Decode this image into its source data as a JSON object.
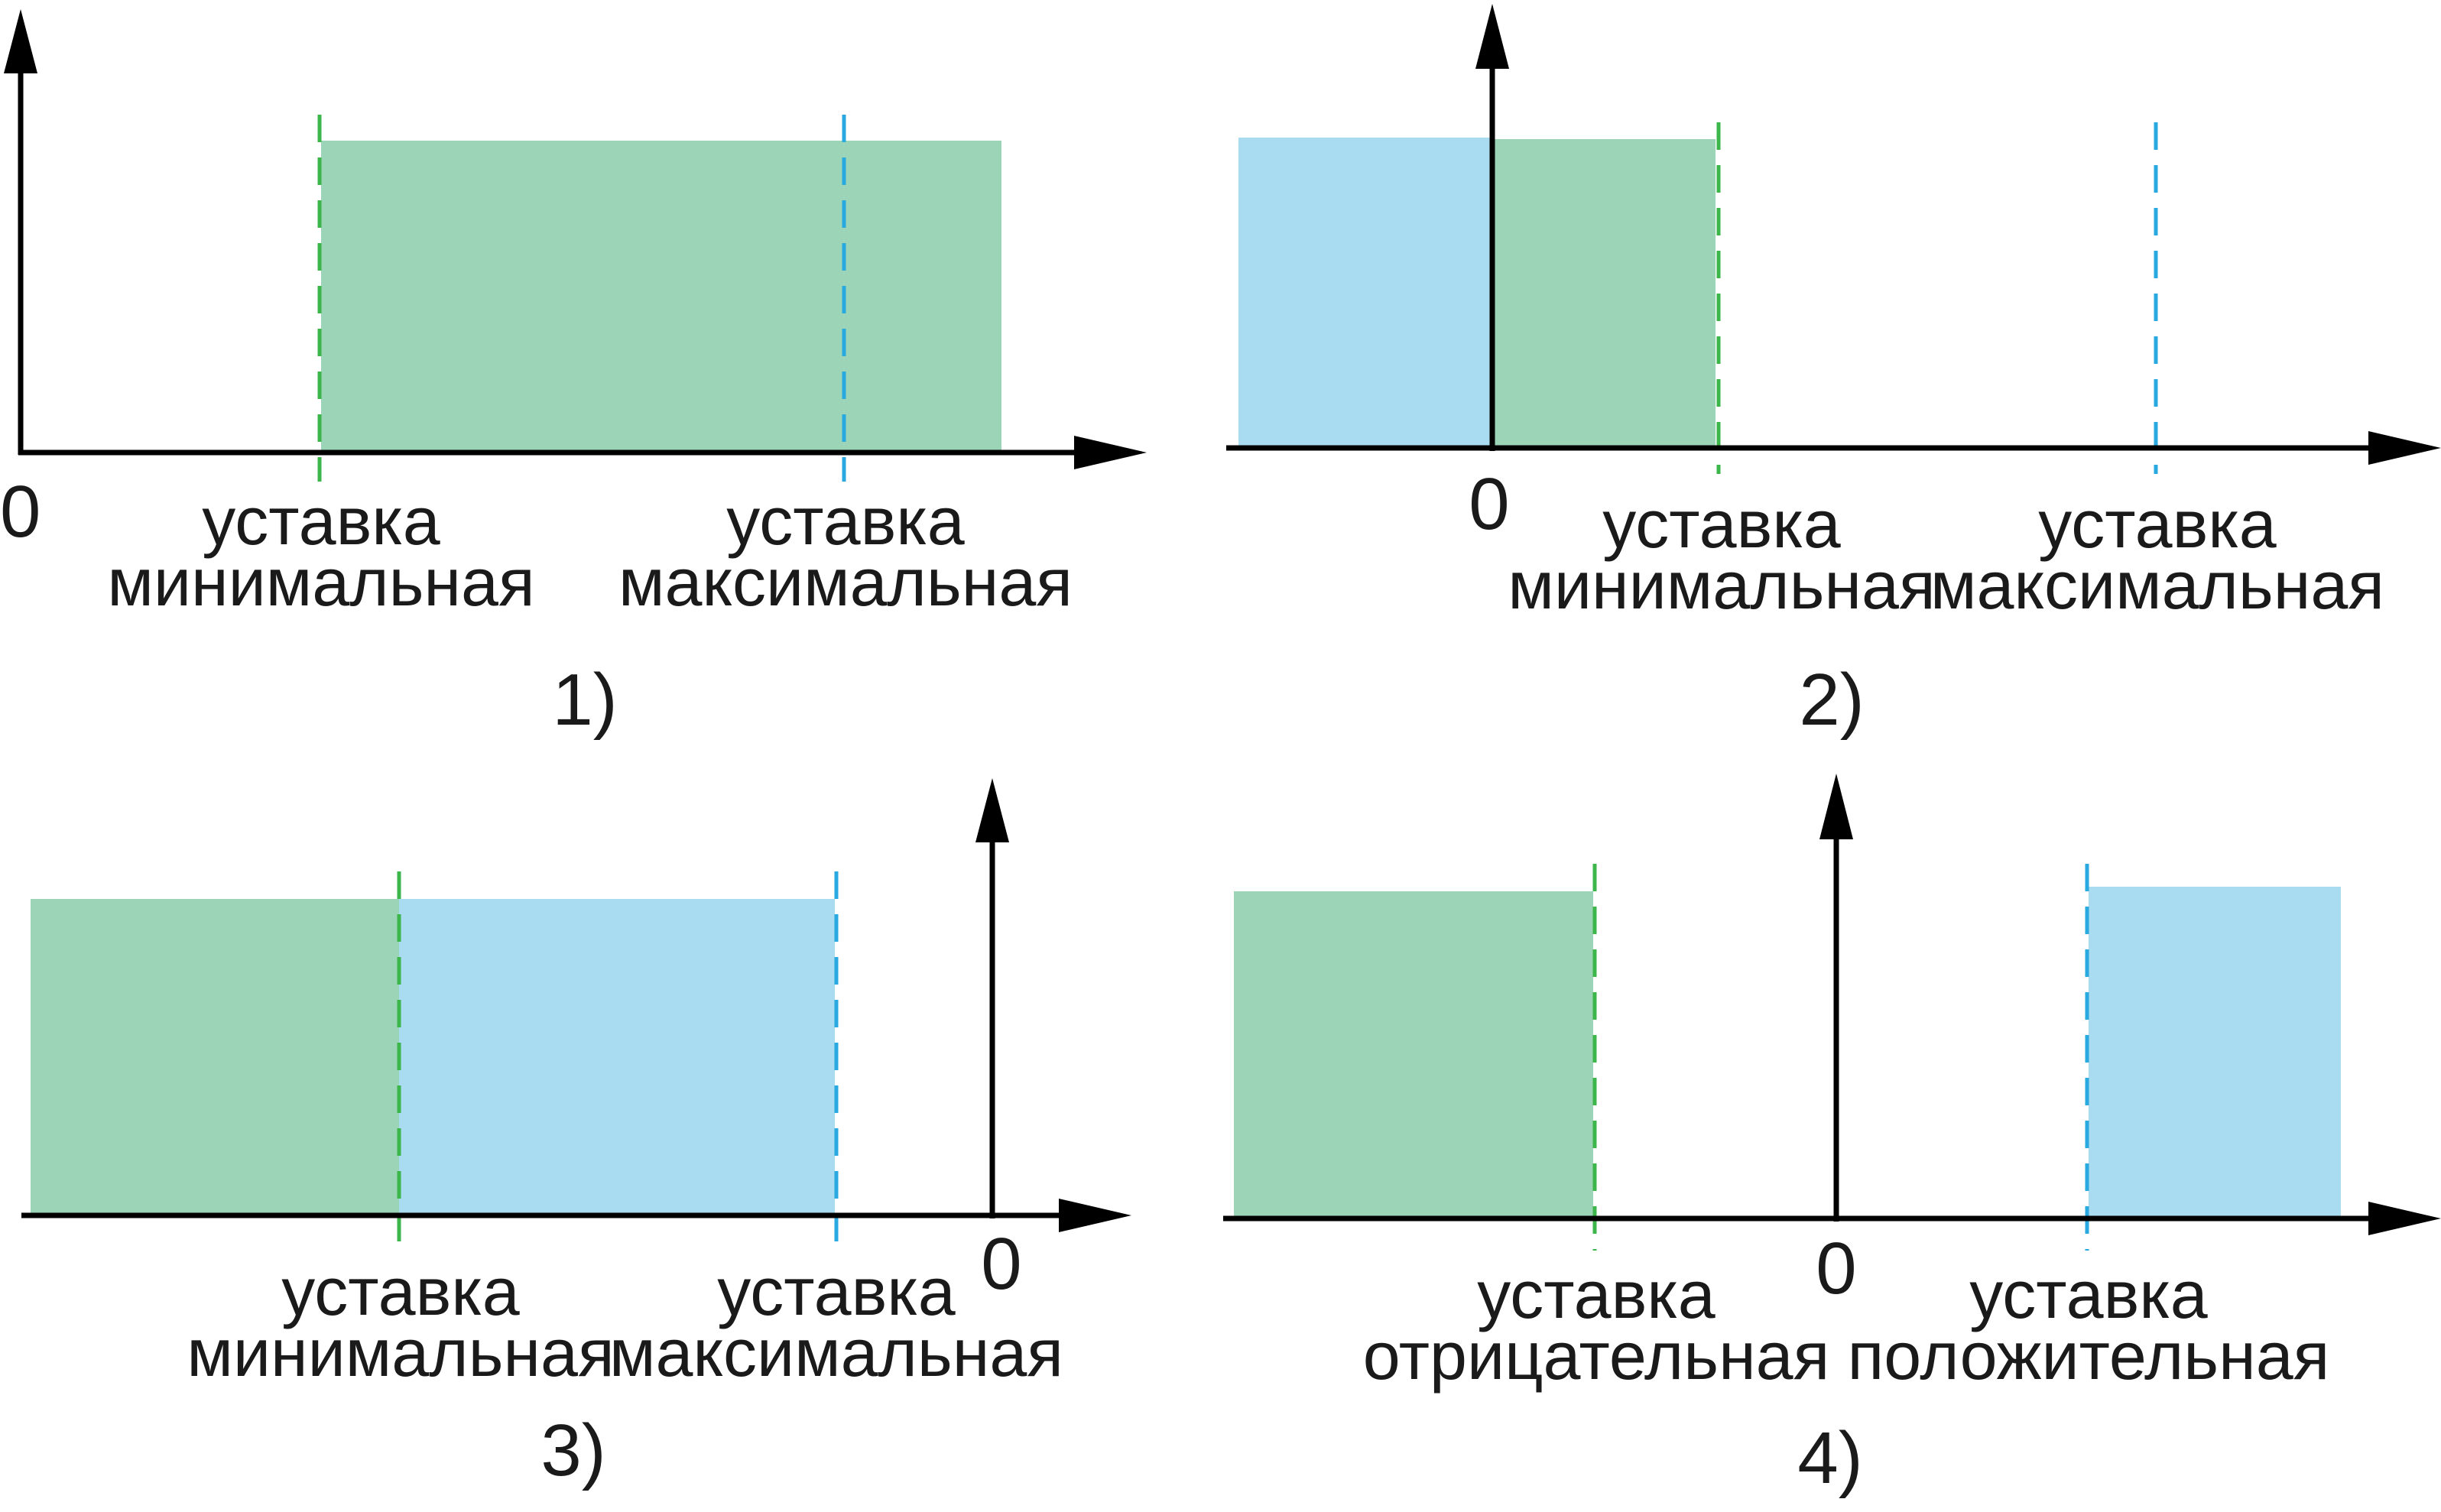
{
  "colors": {
    "green_fill": "#9bd4b7",
    "blue_fill": "#a9dcf1",
    "green_dash": "#3cb54a",
    "blue_dash": "#29a9df",
    "axis": "#000000"
  },
  "panels": [
    {
      "number": "1)",
      "zero": "0",
      "labels": [
        {
          "line1": "уставка",
          "line2": "минимальная"
        },
        {
          "line1": "уставка",
          "line2": "максимальная"
        }
      ]
    },
    {
      "number": "2)",
      "zero": "0",
      "labels": [
        {
          "line1": "уставка",
          "line2": "минимальная"
        },
        {
          "line1": "уставка",
          "line2": "максимальная"
        }
      ]
    },
    {
      "number": "3)",
      "zero": "0",
      "labels": [
        {
          "line1": "уставка",
          "line2": "минимальная"
        },
        {
          "line1": "уставка",
          "line2": "максимальная"
        }
      ]
    },
    {
      "number": "4)",
      "zero": "0",
      "labels": [
        {
          "line1": "уставка",
          "line2": "отрицательная"
        },
        {
          "line1": "уставка",
          "line2": "положительная"
        }
      ]
    }
  ]
}
